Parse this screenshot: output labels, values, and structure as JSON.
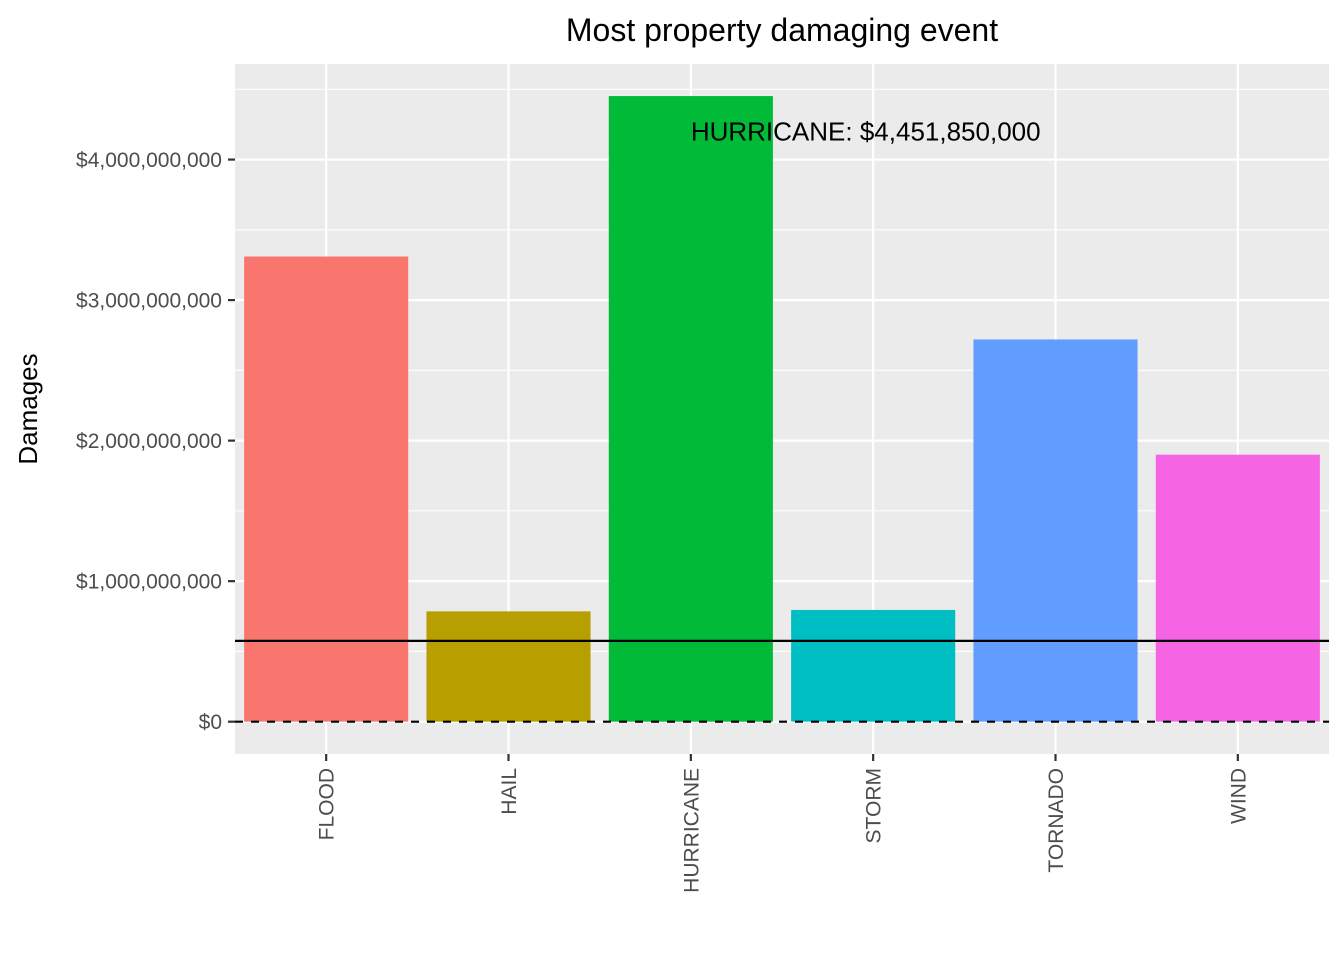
{
  "chart_data": {
    "type": "bar",
    "title": "Most property damaging event",
    "xlabel": "",
    "ylabel": "Damages",
    "categories": [
      "FLOOD",
      "HAIL",
      "HURRICANE",
      "STORM",
      "TORNADO",
      "WIND"
    ],
    "values": [
      3310000000,
      785000000,
      4451850000,
      795000000,
      2720000000,
      1900000000
    ],
    "colors": [
      "#F8766D",
      "#B79F00",
      "#00BA38",
      "#00BFC4",
      "#619CFF",
      "#F564E3"
    ],
    "ylim": [
      -230000000,
      4680000000
    ],
    "yticks": [
      0,
      1000000000,
      2000000000,
      3000000000,
      4000000000
    ],
    "ytick_labels": [
      "$0",
      "$1,000,000,000",
      "$2,000,000,000",
      "$3,000,000,000",
      "$4,000,000,000"
    ],
    "reference_lines": [
      {
        "value": 575000000,
        "style": "solid"
      },
      {
        "value": 0,
        "style": "dashed"
      }
    ],
    "annotation": {
      "text": "HURRICANE: $4,451,850,000",
      "category": "HURRICANE",
      "value": 4200000000
    },
    "panel_background": "#EBEBEB",
    "grid": true,
    "legend": "none"
  }
}
